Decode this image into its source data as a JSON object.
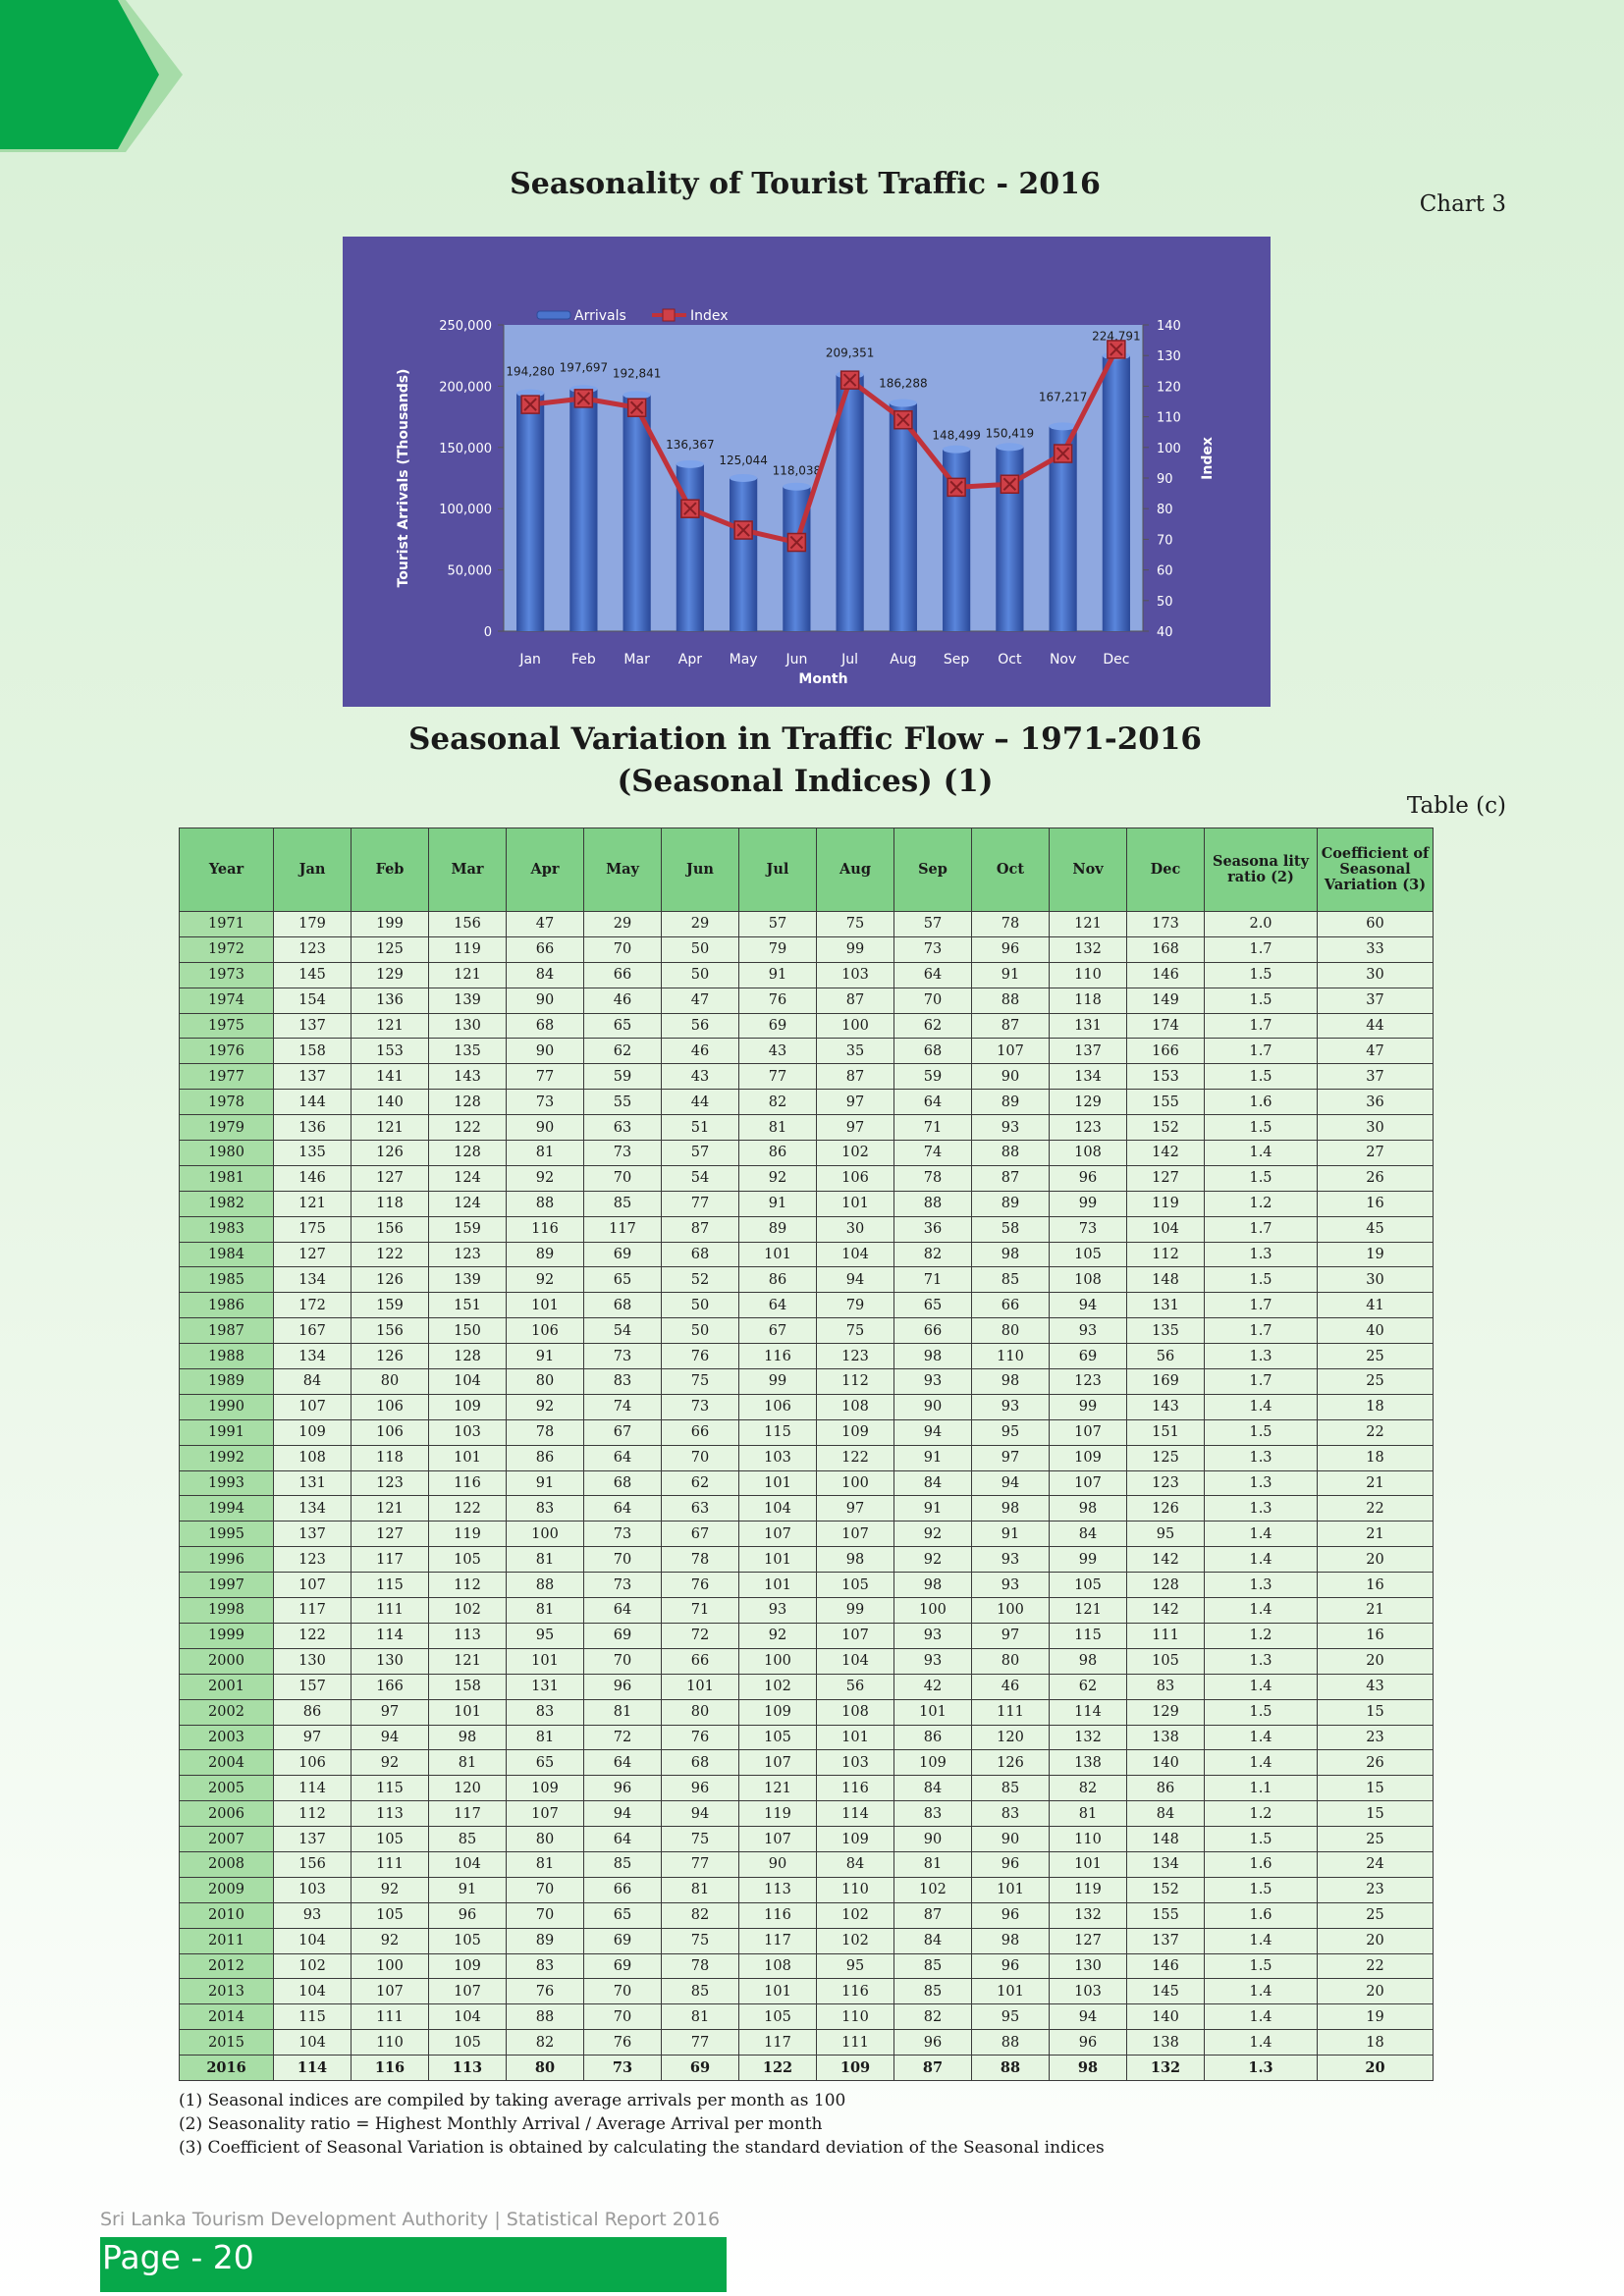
{
  "page": {
    "chart_title": "Seasonality of Tourist Traffic - 2016",
    "chart_number": "Chart 3",
    "table_title_line1": "Seasonal Variation in Traffic Flow – 1971-2016",
    "table_title_line2": "(Seasonal Indices) (1)",
    "table_number": "Table (c)",
    "footer_text": "Sri Lanka Tourism Development Authority  |  Statistical Report 2016",
    "page_label": "Page - 20",
    "accent_color": "#07a84a",
    "header_color": "#80d088"
  },
  "chart_data": {
    "type": "bar",
    "categories": [
      "Jan",
      "Feb",
      "Mar",
      "Apr",
      "May",
      "Jun",
      "Jul",
      "Aug",
      "Sep",
      "Oct",
      "Nov",
      "Dec"
    ],
    "series": [
      {
        "name": "Arrivals",
        "type": "bar",
        "axis": "left",
        "color": "#3c63b8",
        "values": [
          194280,
          197697,
          192841,
          136367,
          125044,
          118038,
          209351,
          186288,
          148499,
          150419,
          167217,
          224791
        ],
        "labels": [
          "194,280",
          "197,697",
          "192,841",
          "136,367",
          "125,044",
          "118,038",
          "209,351",
          "186,288",
          "148,499",
          "150,419",
          "167,217",
          "224,791"
        ]
      },
      {
        "name": "Index",
        "type": "line",
        "axis": "right",
        "color": "#c0323a",
        "values": [
          114,
          116,
          113,
          80,
          73,
          69,
          122,
          109,
          87,
          88,
          98,
          132
        ]
      }
    ],
    "title": "",
    "xlabel": "Month",
    "ylabel": "Tourist Arrivals (Thousands)",
    "y2label": "Index",
    "ylim": [
      0,
      250000
    ],
    "yticks": [
      "0",
      "50,000",
      "100,000",
      "150,000",
      "200,000",
      "250,000"
    ],
    "y2lim": [
      40,
      140
    ],
    "y2ticks": [
      "40",
      "50",
      "60",
      "70",
      "80",
      "90",
      "100",
      "110",
      "120",
      "130",
      "140"
    ],
    "legend": "top-left",
    "plot_background": "#8fa8e0",
    "frame_background": "#574fa0"
  },
  "table": {
    "columns": [
      "Year",
      "Jan",
      "Feb",
      "Mar",
      "Apr",
      "May",
      "Jun",
      "Jul",
      "Aug",
      "Sep",
      "Oct",
      "Nov",
      "Dec",
      "Seasona lity ratio (2)",
      "Coefficient of Seasonal Variation (3)"
    ],
    "rows": [
      [
        "1971",
        "179",
        "199",
        "156",
        "47",
        "29",
        "29",
        "57",
        "75",
        "57",
        "78",
        "121",
        "173",
        "2.0",
        "60"
      ],
      [
        "1972",
        "123",
        "125",
        "119",
        "66",
        "70",
        "50",
        "79",
        "99",
        "73",
        "96",
        "132",
        "168",
        "1.7",
        "33"
      ],
      [
        "1973",
        "145",
        "129",
        "121",
        "84",
        "66",
        "50",
        "91",
        "103",
        "64",
        "91",
        "110",
        "146",
        "1.5",
        "30"
      ],
      [
        "1974",
        "154",
        "136",
        "139",
        "90",
        "46",
        "47",
        "76",
        "87",
        "70",
        "88",
        "118",
        "149",
        "1.5",
        "37"
      ],
      [
        "1975",
        "137",
        "121",
        "130",
        "68",
        "65",
        "56",
        "69",
        "100",
        "62",
        "87",
        "131",
        "174",
        "1.7",
        "44"
      ],
      [
        "1976",
        "158",
        "153",
        "135",
        "90",
        "62",
        "46",
        "43",
        "35",
        "68",
        "107",
        "137",
        "166",
        "1.7",
        "47"
      ],
      [
        "1977",
        "137",
        "141",
        "143",
        "77",
        "59",
        "43",
        "77",
        "87",
        "59",
        "90",
        "134",
        "153",
        "1.5",
        "37"
      ],
      [
        "1978",
        "144",
        "140",
        "128",
        "73",
        "55",
        "44",
        "82",
        "97",
        "64",
        "89",
        "129",
        "155",
        "1.6",
        "36"
      ],
      [
        "1979",
        "136",
        "121",
        "122",
        "90",
        "63",
        "51",
        "81",
        "97",
        "71",
        "93",
        "123",
        "152",
        "1.5",
        "30"
      ],
      [
        "1980",
        "135",
        "126",
        "128",
        "81",
        "73",
        "57",
        "86",
        "102",
        "74",
        "88",
        "108",
        "142",
        "1.4",
        "27"
      ],
      [
        "1981",
        "146",
        "127",
        "124",
        "92",
        "70",
        "54",
        "92",
        "106",
        "78",
        "87",
        "96",
        "127",
        "1.5",
        "26"
      ],
      [
        "1982",
        "121",
        "118",
        "124",
        "88",
        "85",
        "77",
        "91",
        "101",
        "88",
        "89",
        "99",
        "119",
        "1.2",
        "16"
      ],
      [
        "1983",
        "175",
        "156",
        "159",
        "116",
        "117",
        "87",
        "89",
        "30",
        "36",
        "58",
        "73",
        "104",
        "1.7",
        "45"
      ],
      [
        "1984",
        "127",
        "122",
        "123",
        "89",
        "69",
        "68",
        "101",
        "104",
        "82",
        "98",
        "105",
        "112",
        "1.3",
        "19"
      ],
      [
        "1985",
        "134",
        "126",
        "139",
        "92",
        "65",
        "52",
        "86",
        "94",
        "71",
        "85",
        "108",
        "148",
        "1.5",
        "30"
      ],
      [
        "1986",
        "172",
        "159",
        "151",
        "101",
        "68",
        "50",
        "64",
        "79",
        "65",
        "66",
        "94",
        "131",
        "1.7",
        "41"
      ],
      [
        "1987",
        "167",
        "156",
        "150",
        "106",
        "54",
        "50",
        "67",
        "75",
        "66",
        "80",
        "93",
        "135",
        "1.7",
        "40"
      ],
      [
        "1988",
        "134",
        "126",
        "128",
        "91",
        "73",
        "76",
        "116",
        "123",
        "98",
        "110",
        "69",
        "56",
        "1.3",
        "25"
      ],
      [
        "1989",
        "84",
        "80",
        "104",
        "80",
        "83",
        "75",
        "99",
        "112",
        "93",
        "98",
        "123",
        "169",
        "1.7",
        "25"
      ],
      [
        "1990",
        "107",
        "106",
        "109",
        "92",
        "74",
        "73",
        "106",
        "108",
        "90",
        "93",
        "99",
        "143",
        "1.4",
        "18"
      ],
      [
        "1991",
        "109",
        "106",
        "103",
        "78",
        "67",
        "66",
        "115",
        "109",
        "94",
        "95",
        "107",
        "151",
        "1.5",
        "22"
      ],
      [
        "1992",
        "108",
        "118",
        "101",
        "86",
        "64",
        "70",
        "103",
        "122",
        "91",
        "97",
        "109",
        "125",
        "1.3",
        "18"
      ],
      [
        "1993",
        "131",
        "123",
        "116",
        "91",
        "68",
        "62",
        "101",
        "100",
        "84",
        "94",
        "107",
        "123",
        "1.3",
        "21"
      ],
      [
        "1994",
        "134",
        "121",
        "122",
        "83",
        "64",
        "63",
        "104",
        "97",
        "91",
        "98",
        "98",
        "126",
        "1.3",
        "22"
      ],
      [
        "1995",
        "137",
        "127",
        "119",
        "100",
        "73",
        "67",
        "107",
        "107",
        "92",
        "91",
        "84",
        "95",
        "1.4",
        "21"
      ],
      [
        "1996",
        "123",
        "117",
        "105",
        "81",
        "70",
        "78",
        "101",
        "98",
        "92",
        "93",
        "99",
        "142",
        "1.4",
        "20"
      ],
      [
        "1997",
        "107",
        "115",
        "112",
        "88",
        "73",
        "76",
        "101",
        "105",
        "98",
        "93",
        "105",
        "128",
        "1.3",
        "16"
      ],
      [
        "1998",
        "117",
        "111",
        "102",
        "81",
        "64",
        "71",
        "93",
        "99",
        "100",
        "100",
        "121",
        "142",
        "1.4",
        "21"
      ],
      [
        "1999",
        "122",
        "114",
        "113",
        "95",
        "69",
        "72",
        "92",
        "107",
        "93",
        "97",
        "115",
        "111",
        "1.2",
        "16"
      ],
      [
        "2000",
        "130",
        "130",
        "121",
        "101",
        "70",
        "66",
        "100",
        "104",
        "93",
        "80",
        "98",
        "105",
        "1.3",
        "20"
      ],
      [
        "2001",
        "157",
        "166",
        "158",
        "131",
        "96",
        "101",
        "102",
        "56",
        "42",
        "46",
        "62",
        "83",
        "1.4",
        "43"
      ],
      [
        "2002",
        "86",
        "97",
        "101",
        "83",
        "81",
        "80",
        "109",
        "108",
        "101",
        "111",
        "114",
        "129",
        "1.5",
        "15"
      ],
      [
        "2003",
        "97",
        "94",
        "98",
        "81",
        "72",
        "76",
        "105",
        "101",
        "86",
        "120",
        "132",
        "138",
        "1.4",
        "23"
      ],
      [
        "2004",
        "106",
        "92",
        "81",
        "65",
        "64",
        "68",
        "107",
        "103",
        "109",
        "126",
        "138",
        "140",
        "1.4",
        "26"
      ],
      [
        "2005",
        "114",
        "115",
        "120",
        "109",
        "96",
        "96",
        "121",
        "116",
        "84",
        "85",
        "82",
        "86",
        "1.1",
        "15"
      ],
      [
        "2006",
        "112",
        "113",
        "117",
        "107",
        "94",
        "94",
        "119",
        "114",
        "83",
        "83",
        "81",
        "84",
        "1.2",
        "15"
      ],
      [
        "2007",
        "137",
        "105",
        "85",
        "80",
        "64",
        "75",
        "107",
        "109",
        "90",
        "90",
        "110",
        "148",
        "1.5",
        "25"
      ],
      [
        "2008",
        "156",
        "111",
        "104",
        "81",
        "85",
        "77",
        "90",
        "84",
        "81",
        "96",
        "101",
        "134",
        "1.6",
        "24"
      ],
      [
        "2009",
        "103",
        "92",
        "91",
        "70",
        "66",
        "81",
        "113",
        "110",
        "102",
        "101",
        "119",
        "152",
        "1.5",
        "23"
      ],
      [
        "2010",
        "93",
        "105",
        "96",
        "70",
        "65",
        "82",
        "116",
        "102",
        "87",
        "96",
        "132",
        "155",
        "1.6",
        "25"
      ],
      [
        "2011",
        "104",
        "92",
        "105",
        "89",
        "69",
        "75",
        "117",
        "102",
        "84",
        "98",
        "127",
        "137",
        "1.4",
        "20"
      ],
      [
        "2012",
        "102",
        "100",
        "109",
        "83",
        "69",
        "78",
        "108",
        "95",
        "85",
        "96",
        "130",
        "146",
        "1.5",
        "22"
      ],
      [
        "2013",
        "104",
        "107",
        "107",
        "76",
        "70",
        "85",
        "101",
        "116",
        "85",
        "101",
        "103",
        "145",
        "1.4",
        "20"
      ],
      [
        "2014",
        "115",
        "111",
        "104",
        "88",
        "70",
        "81",
        "105",
        "110",
        "82",
        "95",
        "94",
        "140",
        "1.4",
        "19"
      ],
      [
        "2015",
        "104",
        "110",
        "105",
        "82",
        "76",
        "77",
        "117",
        "111",
        "96",
        "88",
        "96",
        "138",
        "1.4",
        "18"
      ],
      [
        "2016",
        "114",
        "116",
        "113",
        "80",
        "73",
        "69",
        "122",
        "109",
        "87",
        "88",
        "98",
        "132",
        "1.3",
        "20"
      ]
    ]
  },
  "notes": [
    "(1) Seasonal indices are compiled by taking average arrivals per month as 100",
    "(2) Seasonality ratio = Highest Monthly Arrival / Average Arrival per month",
    "(3) Coefficient of Seasonal Variation is obtained by calculating the standard deviation of the Seasonal indices"
  ]
}
